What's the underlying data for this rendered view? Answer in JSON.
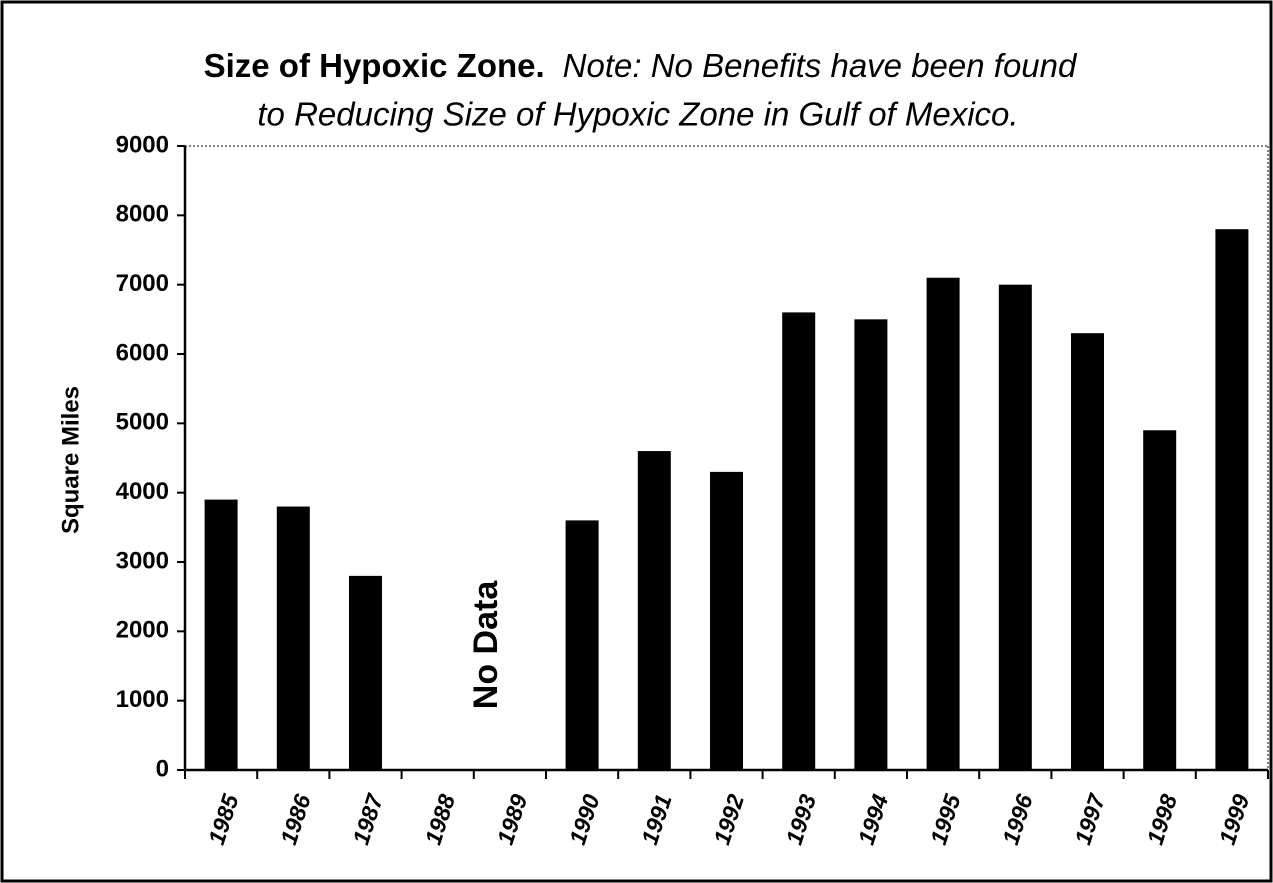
{
  "chart_data": {
    "type": "bar",
    "title": "Size of Hypoxic Zone.",
    "note": [
      "Note: No Benefits have been found",
      "to Reducing Size of Hypoxic Zone in Gulf of Mexico."
    ],
    "ylabel": "Square Miles",
    "annotation": "No Data",
    "categories": [
      "1985",
      "1986",
      "1987",
      "1988",
      "1989",
      "1990",
      "1991",
      "1992",
      "1993",
      "1994",
      "1995",
      "1996",
      "1997",
      "1998",
      "1999"
    ],
    "values": [
      3900,
      3800,
      2800,
      null,
      null,
      3600,
      4600,
      4300,
      6600,
      6500,
      7100,
      7000,
      6300,
      4900,
      7800
    ],
    "color": "#000000",
    "ylim": [
      0,
      9000
    ],
    "yticks": [
      0,
      1000,
      2000,
      3000,
      4000,
      5000,
      6000,
      7000,
      8000,
      9000
    ]
  }
}
